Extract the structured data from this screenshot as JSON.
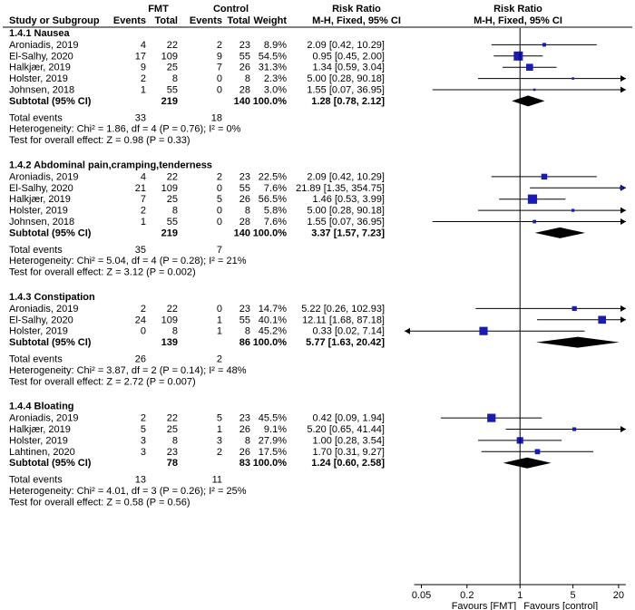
{
  "chart_data": {
    "type": "forest",
    "headers": {
      "study": "Study or Subgroup",
      "fmt_group": "FMT",
      "control_group": "Control",
      "events": "Events",
      "total": "Total",
      "weight": "Weight",
      "rr_title": "Risk Ratio",
      "rr_method": "M-H, Fixed, 95% CI"
    },
    "axis": {
      "scale": "log",
      "ticks": [
        0.05,
        0.2,
        1,
        5,
        20
      ],
      "tick_labels": [
        "0.05",
        "0.2",
        "1",
        "5",
        "20"
      ],
      "xlim": [
        0.03,
        25
      ],
      "label_left": "Favours [FMT]",
      "label_right": "Favours [control]"
    },
    "subgroups": [
      {
        "title": "1.4.1 Nausea",
        "studies": [
          {
            "name": "Aroniadis, 2019",
            "e1": "4",
            "n1": "22",
            "e2": "2",
            "n2": "23",
            "weight": "8.9%",
            "ci_text": "2.09 [0.42, 10.29]",
            "rr": 2.09,
            "lo": 0.42,
            "hi": 10.29
          },
          {
            "name": "El-Salhy, 2020",
            "e1": "17",
            "n1": "109",
            "e2": "9",
            "n2": "55",
            "weight": "54.5%",
            "ci_text": "0.95 [0.45, 2.00]",
            "rr": 0.95,
            "lo": 0.45,
            "hi": 2.0
          },
          {
            "name": "Halkjær, 2019",
            "e1": "9",
            "n1": "25",
            "e2": "7",
            "n2": "26",
            "weight": "31.3%",
            "ci_text": "1.34 [0.59, 3.04]",
            "rr": 1.34,
            "lo": 0.59,
            "hi": 3.04
          },
          {
            "name": "Holster, 2019",
            "e1": "2",
            "n1": "8",
            "e2": "0",
            "n2": "8",
            "weight": "2.3%",
            "ci_text": "5.00 [0.28, 90.18]",
            "rr": 5.0,
            "lo": 0.28,
            "hi": 90.18
          },
          {
            "name": "Johnsen, 2018",
            "e1": "1",
            "n1": "55",
            "e2": "0",
            "n2": "28",
            "weight": "3.0%",
            "ci_text": "1.55 [0.07, 36.95]",
            "rr": 1.55,
            "lo": 0.07,
            "hi": 36.95
          }
        ],
        "subtotal": {
          "label": "Subtotal (95% CI)",
          "n1": "219",
          "n2": "140",
          "weight": "100.0%",
          "ci_text": "1.28 [0.78, 2.12]",
          "rr": 1.28,
          "lo": 0.78,
          "hi": 2.12
        },
        "total_events": {
          "label": "Total events",
          "e1": "33",
          "e2": "18"
        },
        "heterogeneity": "Heterogeneity: Chi² = 1.86, df = 4 (P = 0.76); I² = 0%",
        "overall_effect": "Test for overall effect: Z = 0.98 (P = 0.33)"
      },
      {
        "title": "1.4.2 Abdominal pain,cramping,tenderness",
        "studies": [
          {
            "name": "Aroniadis, 2019",
            "e1": "4",
            "n1": "22",
            "e2": "2",
            "n2": "23",
            "weight": "22.5%",
            "ci_text": "2.09 [0.42, 10.29]",
            "rr": 2.09,
            "lo": 0.42,
            "hi": 10.29
          },
          {
            "name": "El-Salhy, 2020",
            "e1": "21",
            "n1": "109",
            "e2": "0",
            "n2": "55",
            "weight": "7.6%",
            "ci_text": "21.89 [1.35, 354.75]",
            "rr": 21.89,
            "lo": 1.35,
            "hi": 354.75
          },
          {
            "name": "Halkjær, 2019",
            "e1": "7",
            "n1": "25",
            "e2": "5",
            "n2": "26",
            "weight": "56.5%",
            "ci_text": "1.46 [0.53, 3.99]",
            "rr": 1.46,
            "lo": 0.53,
            "hi": 3.99
          },
          {
            "name": "Holster, 2019",
            "e1": "2",
            "n1": "8",
            "e2": "0",
            "n2": "8",
            "weight": "5.8%",
            "ci_text": "5.00 [0.28, 90.18]",
            "rr": 5.0,
            "lo": 0.28,
            "hi": 90.18
          },
          {
            "name": "Johnsen, 2018",
            "e1": "1",
            "n1": "55",
            "e2": "0",
            "n2": "28",
            "weight": "7.6%",
            "ci_text": "1.55 [0.07, 36.95]",
            "rr": 1.55,
            "lo": 0.07,
            "hi": 36.95
          }
        ],
        "subtotal": {
          "label": "Subtotal (95% CI)",
          "n1": "219",
          "n2": "140",
          "weight": "100.0%",
          "ci_text": "3.37 [1.57, 7.23]",
          "rr": 3.37,
          "lo": 1.57,
          "hi": 7.23
        },
        "total_events": {
          "label": "Total events",
          "e1": "35",
          "e2": "7"
        },
        "heterogeneity": "Heterogeneity: Chi² = 5.04, df = 4 (P = 0.28); I² = 21%",
        "overall_effect": "Test for overall effect: Z = 3.12 (P = 0.002)"
      },
      {
        "title": "1.4.3 Constipation",
        "studies": [
          {
            "name": "Aroniadis, 2019",
            "e1": "2",
            "n1": "22",
            "e2": "0",
            "n2": "23",
            "weight": "14.7%",
            "ci_text": "5.22 [0.26, 102.93]",
            "rr": 5.22,
            "lo": 0.26,
            "hi": 102.93
          },
          {
            "name": "El-Salhy, 2020",
            "e1": "24",
            "n1": "109",
            "e2": "1",
            "n2": "55",
            "weight": "40.1%",
            "ci_text": "12.11 [1.68, 87.18]",
            "rr": 12.11,
            "lo": 1.68,
            "hi": 87.18
          },
          {
            "name": "Holster, 2019",
            "e1": "0",
            "n1": "8",
            "e2": "1",
            "n2": "8",
            "weight": "45.2%",
            "ci_text": "0.33 [0.02, 7.14]",
            "rr": 0.33,
            "lo": 0.02,
            "hi": 7.14
          }
        ],
        "subtotal": {
          "label": "Subtotal (95% CI)",
          "n1": "139",
          "n2": "86",
          "weight": "100.0%",
          "ci_text": "5.77 [1.63, 20.42]",
          "rr": 5.77,
          "lo": 1.63,
          "hi": 20.42
        },
        "total_events": {
          "label": "Total events",
          "e1": "26",
          "e2": "2"
        },
        "heterogeneity": "Heterogeneity: Chi² = 3.87, df = 2 (P = 0.14); I² = 48%",
        "overall_effect": "Test for overall effect: Z = 2.72 (P = 0.007)"
      },
      {
        "title": "1.4.4 Bloating",
        "studies": [
          {
            "name": "Aroniadis, 2019",
            "e1": "2",
            "n1": "22",
            "e2": "5",
            "n2": "23",
            "weight": "45.5%",
            "ci_text": "0.42 [0.09, 1.94]",
            "rr": 0.42,
            "lo": 0.09,
            "hi": 1.94
          },
          {
            "name": "Halkjær, 2019",
            "e1": "5",
            "n1": "25",
            "e2": "1",
            "n2": "26",
            "weight": "9.1%",
            "ci_text": "5.20 [0.65, 41.44]",
            "rr": 5.2,
            "lo": 0.65,
            "hi": 41.44
          },
          {
            "name": "Holster, 2019",
            "e1": "3",
            "n1": "8",
            "e2": "3",
            "n2": "8",
            "weight": "27.9%",
            "ci_text": "1.00 [0.28, 3.54]",
            "rr": 1.0,
            "lo": 0.28,
            "hi": 3.54
          },
          {
            "name": "Lahtinen, 2020",
            "e1": "3",
            "n1": "23",
            "e2": "2",
            "n2": "26",
            "weight": "17.5%",
            "ci_text": "1.70 [0.31, 9.27]",
            "rr": 1.7,
            "lo": 0.31,
            "hi": 9.27
          }
        ],
        "subtotal": {
          "label": "Subtotal (95% CI)",
          "n1": "78",
          "n2": "83",
          "weight": "100.0%",
          "ci_text": "1.24 [0.60, 2.58]",
          "rr": 1.24,
          "lo": 0.6,
          "hi": 2.58
        },
        "total_events": {
          "label": "Total events",
          "e1": "13",
          "e2": "11"
        },
        "heterogeneity": "Heterogeneity: Chi² = 4.01, df = 3 (P = 0.26); I² = 25%",
        "overall_effect": "Test for overall effect: Z = 0.58 (P = 0.56)"
      }
    ]
  },
  "colors": {
    "marker": "#1a1ab4",
    "diamond": "#000000",
    "line": "#000000"
  }
}
